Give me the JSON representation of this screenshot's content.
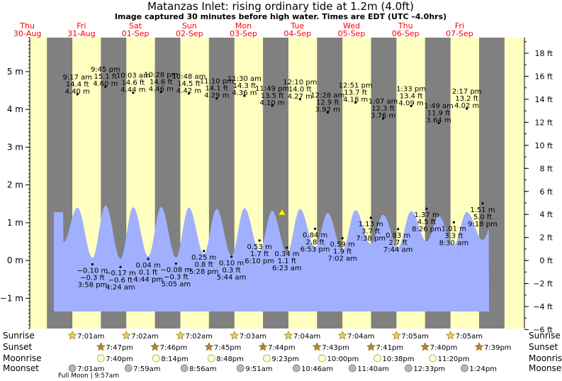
{
  "chart_data": {
    "type": "area",
    "title": "Matanzas Inlet: rising  ordinary tide at 1.2m (4.0ft)",
    "subtitle": "Image captured 30 minutes before high water. Times are EDT (UTC –4.0hrs)",
    "day_labels": [
      {
        "day": "Thu",
        "date": "30‑Aug"
      },
      {
        "day": "Fri",
        "date": "31‑Aug"
      },
      {
        "day": "Sat",
        "date": "01‑Sep"
      },
      {
        "day": "Sun",
        "date": "02‑Sep"
      },
      {
        "day": "Mon",
        "date": "03‑Sep"
      },
      {
        "day": "Tue",
        "date": "04‑Sep"
      },
      {
        "day": "Wed",
        "date": "05‑Sep"
      },
      {
        "day": "Thu",
        "date": "06‑Sep"
      },
      {
        "day": "Fri",
        "date": "07‑Sep"
      }
    ],
    "y_left_ticks": [
      "−1 m",
      "0 m",
      "1 m",
      "2 m",
      "3 m",
      "4 m",
      "5 m"
    ],
    "y_right_ticks": [
      "−6 ft",
      "−4 ft",
      "−2 ft",
      "0 ft",
      "2 ft",
      "4 ft",
      "6 ft",
      "8 ft",
      "10 ft",
      "12 ft",
      "14 ft",
      "16 ft",
      "18 ft"
    ],
    "ylim_m": [
      -1.8,
      5.9
    ],
    "tides": [
      {
        "time": "9:17 am",
        "ft": "14.4 ft",
        "m": "4.40 m",
        "h": 4.4,
        "type": "high"
      },
      {
        "time": "3:58 pm",
        "ft": "−0.3 ft",
        "m": "−0.10 m",
        "h": -0.1,
        "type": "low"
      },
      {
        "time": "9:45 pm",
        "ft": "15.1 ft",
        "m": "4.60 m",
        "h": 4.6,
        "type": "high"
      },
      {
        "time": "4:24 am",
        "ft": "−0.6 ft",
        "m": "−0.17 m",
        "h": -0.17,
        "type": "low"
      },
      {
        "time": "10:03 am",
        "ft": "14.6 ft",
        "m": "4.44 m",
        "h": 4.44,
        "type": "high"
      },
      {
        "time": "4:44 pm",
        "ft": "0.1 ft",
        "m": "0.04 m",
        "h": 0.04,
        "type": "low"
      },
      {
        "time": "10:28 pm",
        "ft": "14.6 ft",
        "m": "4.46 m",
        "h": 4.46,
        "type": "high"
      },
      {
        "time": "5:05 am",
        "ft": "−0.3 ft",
        "m": "−0.08 m",
        "h": -0.08,
        "type": "low"
      },
      {
        "time": "10:48 am",
        "ft": "14.5 ft",
        "m": "4.42 m",
        "h": 4.42,
        "type": "high"
      },
      {
        "time": "5:28 pm",
        "ft": "0.8 ft",
        "m": "0.25 m",
        "h": 0.25,
        "type": "low"
      },
      {
        "time": "11:10 pm",
        "ft": "14.1 ft",
        "m": "4.29 m",
        "h": 4.29,
        "type": "high"
      },
      {
        "time": "5:44 am",
        "ft": "0.3 ft",
        "m": "0.10 m",
        "h": 0.1,
        "type": "low"
      },
      {
        "time": "11:30 am",
        "ft": "14.3 ft",
        "m": "4.36 m",
        "h": 4.36,
        "type": "high"
      },
      {
        "time": "6:10 pm",
        "ft": "1.7 ft",
        "m": "0.53 m",
        "h": 0.53,
        "type": "low"
      },
      {
        "time": "11:49 pm",
        "ft": "13.5 ft",
        "m": "4.10 m",
        "h": 4.1,
        "type": "high"
      },
      {
        "time": "6:23 am",
        "ft": "1.1 ft",
        "m": "0.34 m",
        "h": 0.34,
        "type": "low"
      },
      {
        "time": "12:10 pm",
        "ft": "14.0 ft",
        "m": "4.27 m",
        "h": 4.27,
        "type": "high"
      },
      {
        "time": "6:53 pm",
        "ft": "2.8 ft",
        "m": "0.84 m",
        "h": 0.84,
        "type": "low"
      },
      {
        "time": "12:28 am",
        "ft": "12.9 ft",
        "m": "3.92 m",
        "h": 3.92,
        "type": "high"
      },
      {
        "time": "7:02 am",
        "ft": "1.9 ft",
        "m": "0.59 m",
        "h": 0.59,
        "type": "low"
      },
      {
        "time": "12:51 pm",
        "ft": "13.7 ft",
        "m": "4.18 m",
        "h": 4.18,
        "type": "high"
      },
      {
        "time": "7:38 pm",
        "ft": "3.7 ft",
        "m": "1.13 m",
        "h": 1.13,
        "type": "low"
      },
      {
        "time": "1:07 am",
        "ft": "12.3 ft",
        "m": "3.76 m",
        "h": 3.76,
        "type": "high"
      },
      {
        "time": "7:44 am",
        "ft": "2.7 ft",
        "m": "0.83 m",
        "h": 0.83,
        "type": "low"
      },
      {
        "time": "1:33 pm",
        "ft": "13.4 ft",
        "m": "4.09 m",
        "h": 4.09,
        "type": "high"
      },
      {
        "time": "8:26 pm",
        "ft": "4.5 ft",
        "m": "1.37 m",
        "h": 1.37,
        "type": "low"
      },
      {
        "time": "1:49 am",
        "ft": "11.9 ft",
        "m": "3.64 m",
        "h": 3.64,
        "type": "high"
      },
      {
        "time": "8:30 am",
        "ft": "3.3 ft",
        "m": "1.01 m",
        "h": 1.01,
        "type": "low"
      },
      {
        "time": "2:17 pm",
        "ft": "13.2 ft",
        "m": "4.02 m",
        "h": 4.02,
        "type": "high"
      },
      {
        "time": "9:18 pm",
        "ft": "5.0 ft",
        "m": "1.51 m",
        "h": 1.51,
        "type": "low"
      }
    ],
    "astro": {
      "row_labels": [
        "Sunrise",
        "Sunset",
        "Moonrise",
        "Moonset"
      ],
      "sunrise": [
        "7:01am",
        "7:02am",
        "7:02am",
        "7:03am",
        "7:04am",
        "7:04am",
        "7:05am",
        "7:05am"
      ],
      "sunset": [
        "7:47pm",
        "7:46pm",
        "7:45pm",
        "7:44pm",
        "7:43pm",
        "7:41pm",
        "7:40pm",
        "7:39pm"
      ],
      "moonrise": [
        "7:40pm",
        "8:14pm",
        "8:48pm",
        "9:23pm",
        "10:00pm",
        "10:38pm",
        "11:20pm"
      ],
      "moonset": [
        "7:01am",
        "7:59am",
        "8:56am",
        "9:51am",
        "10:46am",
        "11:40am",
        "12:33pm",
        "1:24pm"
      ],
      "note": "Full Moon | 9:57am"
    },
    "colors": {
      "day": "#ffffc0",
      "night": "#808080",
      "tide": "#a0b0ff",
      "date_text": "#ff0000",
      "sun": "#f0d050",
      "sunset": "#c08030",
      "moonrise": "#ffffc8",
      "moonset": "#b8b8a8"
    }
  }
}
